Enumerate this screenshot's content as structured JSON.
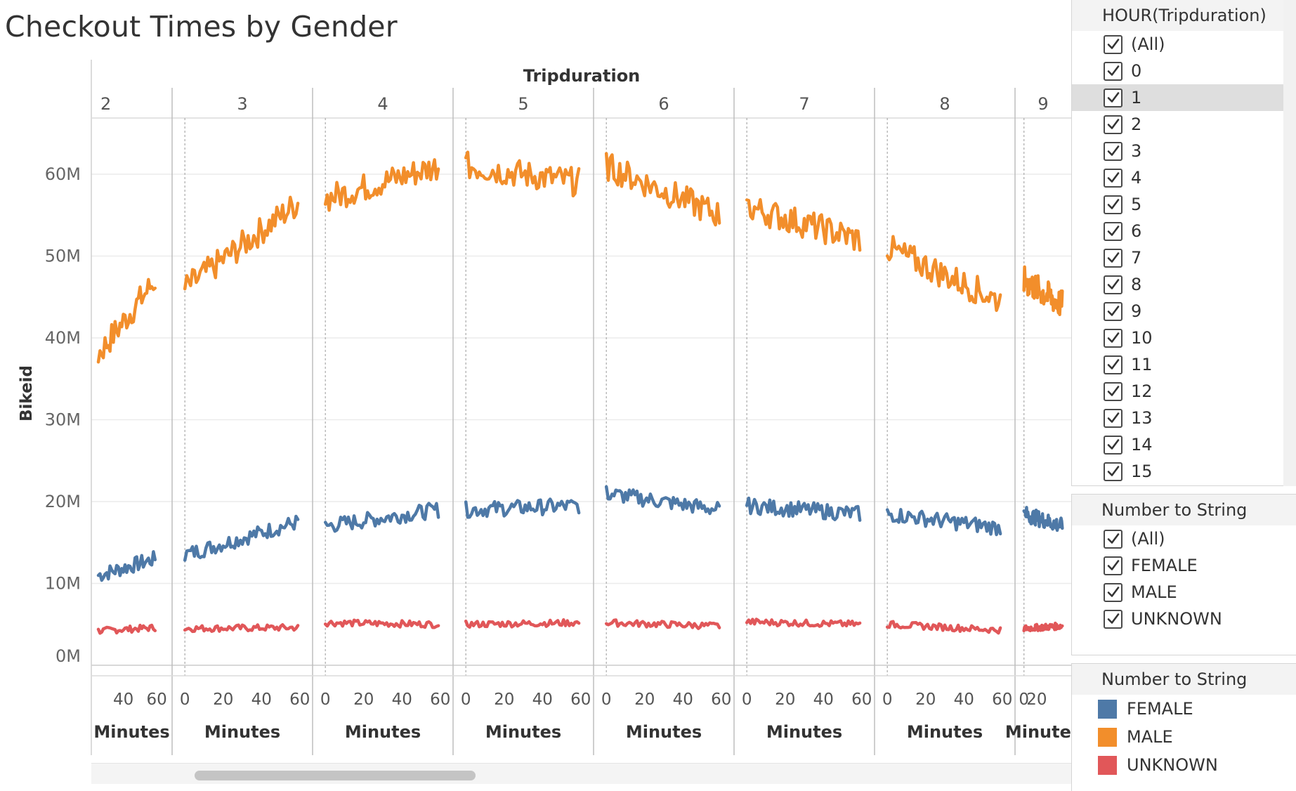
{
  "title": "Checkout Times by Gender",
  "chart_data": {
    "type": "line",
    "title": "Checkout Times by Gender",
    "column_header": "Tripduration",
    "ylabel": "Bikeid",
    "xlabel": "Minutes",
    "ylim": [
      0,
      60
    ],
    "y_ticks": [
      "0M",
      "10M",
      "20M",
      "30M",
      "40M",
      "50M",
      "60M"
    ],
    "panes": [
      {
        "hour": "2",
        "x_ticks": [
          "40",
          "60"
        ],
        "xlim": [
          25,
          65
        ],
        "series": {
          "FEMALE": [
            11,
            13
          ],
          "MALE": [
            38,
            47
          ],
          "UNKNOWN": [
            4.2,
            4.6
          ]
        }
      },
      {
        "hour": "3",
        "x_ticks": [
          "0",
          "20",
          "40",
          "60"
        ],
        "xlim": [
          -3,
          63
        ],
        "series": {
          "FEMALE": [
            13.5,
            17.5
          ],
          "MALE": [
            46,
            56.5
          ],
          "UNKNOWN": [
            4.5,
            4.6
          ]
        }
      },
      {
        "hour": "4",
        "x_ticks": [
          "0",
          "20",
          "40",
          "60"
        ],
        "xlim": [
          -3,
          63
        ],
        "series": {
          "FEMALE": [
            17,
            19
          ],
          "MALE": [
            57,
            61
          ],
          "UNKNOWN": [
            5.2,
            5
          ]
        }
      },
      {
        "hour": "5",
        "x_ticks": [
          "0",
          "20",
          "40",
          "60"
        ],
        "xlim": [
          -3,
          63
        ],
        "series": {
          "FEMALE": [
            19,
            19.5
          ],
          "MALE": [
            61,
            59
          ],
          "UNKNOWN": [
            5,
            5.2
          ]
        }
      },
      {
        "hour": "6",
        "x_ticks": [
          "0",
          "20",
          "40",
          "60"
        ],
        "xlim": [
          -3,
          63
        ],
        "series": {
          "FEMALE": [
            21,
            19
          ],
          "MALE": [
            61,
            55
          ],
          "UNKNOWN": [
            5.2,
            4.8
          ]
        }
      },
      {
        "hour": "7",
        "x_ticks": [
          "0",
          "20",
          "40",
          "60"
        ],
        "xlim": [
          -3,
          63
        ],
        "series": {
          "FEMALE": [
            19.5,
            18.5
          ],
          "MALE": [
            56,
            52
          ],
          "UNKNOWN": [
            5.3,
            5
          ]
        }
      },
      {
        "hour": "8",
        "x_ticks": [
          "0",
          "20",
          "40",
          "60"
        ],
        "xlim": [
          -3,
          63
        ],
        "series": {
          "FEMALE": [
            18.5,
            16.8
          ],
          "MALE": [
            51,
            44.5
          ],
          "UNKNOWN": [
            5,
            4.3
          ]
        }
      },
      {
        "hour": "9",
        "x_ticks": [
          "0",
          "20"
        ],
        "xlim": [
          -3,
          63
        ],
        "series": {
          "FEMALE": [
            18.5,
            17
          ],
          "MALE": [
            47,
            44
          ],
          "UNKNOWN": [
            4.5,
            4.8
          ]
        }
      }
    ],
    "legend": {
      "title": "Number to String",
      "position": "right",
      "entries": [
        {
          "name": "FEMALE",
          "color": "#4e79a7"
        },
        {
          "name": "MALE",
          "color": "#f28e2b"
        },
        {
          "name": "UNKNOWN",
          "color": "#e15759"
        }
      ]
    },
    "grid": true
  },
  "filters": {
    "hour": {
      "title": "HOUR(Tripduration)",
      "items": [
        "(All)",
        "0",
        "1",
        "2",
        "3",
        "4",
        "5",
        "6",
        "7",
        "8",
        "9",
        "10",
        "11",
        "12",
        "13",
        "14",
        "15"
      ],
      "selected_highlight": "1"
    },
    "gender": {
      "title": "Number to String",
      "items": [
        "(All)",
        "FEMALE",
        "MALE",
        "UNKNOWN"
      ]
    }
  }
}
